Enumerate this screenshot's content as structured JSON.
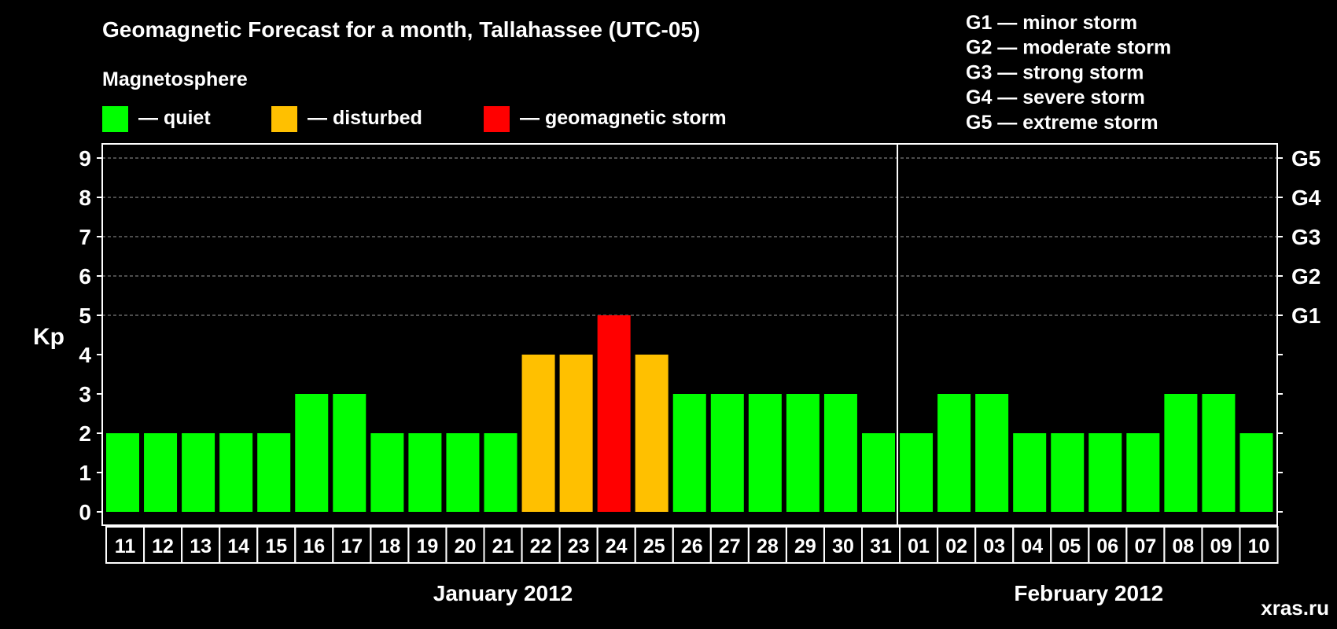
{
  "chart_data": {
    "type": "bar",
    "title": "Geomagnetic Forecast for a month, Tallahassee (UTC-05)",
    "subtitle": "Magnetosphere",
    "ylabel": "Kp",
    "ylim": [
      0,
      9
    ],
    "yticks": [
      "0",
      "1",
      "2",
      "3",
      "4",
      "5",
      "6",
      "7",
      "8",
      "9"
    ],
    "right_axis": [
      {
        "kp": 5,
        "label": "G1"
      },
      {
        "kp": 6,
        "label": "G2"
      },
      {
        "kp": 7,
        "label": "G3"
      },
      {
        "kp": 8,
        "label": "G4"
      },
      {
        "kp": 9,
        "label": "G5"
      }
    ],
    "categories": [
      "11",
      "12",
      "13",
      "14",
      "15",
      "16",
      "17",
      "18",
      "19",
      "20",
      "21",
      "22",
      "23",
      "24",
      "25",
      "26",
      "27",
      "28",
      "29",
      "30",
      "31",
      "01",
      "02",
      "03",
      "04",
      "05",
      "06",
      "07",
      "08",
      "09",
      "10"
    ],
    "values": [
      2,
      2,
      2,
      2,
      2,
      3,
      3,
      2,
      2,
      2,
      2,
      4,
      4,
      5,
      4,
      3,
      3,
      3,
      3,
      3,
      2,
      2,
      3,
      3,
      2,
      2,
      2,
      2,
      3,
      3,
      2
    ],
    "levels": [
      "quiet",
      "quiet",
      "quiet",
      "quiet",
      "quiet",
      "quiet",
      "quiet",
      "quiet",
      "quiet",
      "quiet",
      "quiet",
      "disturbed",
      "disturbed",
      "storm",
      "disturbed",
      "quiet",
      "quiet",
      "quiet",
      "quiet",
      "quiet",
      "quiet",
      "quiet",
      "quiet",
      "quiet",
      "quiet",
      "quiet",
      "quiet",
      "quiet",
      "quiet",
      "quiet",
      "quiet"
    ],
    "months": [
      {
        "label": "January 2012",
        "start": 0,
        "end": 20
      },
      {
        "label": "February 2012",
        "start": 21,
        "end": 30
      }
    ],
    "month_divider_after_index": 20,
    "legend": [
      {
        "key": "quiet",
        "label": "— quiet",
        "color": "#00ff00"
      },
      {
        "key": "disturbed",
        "label": "— disturbed",
        "color": "#ffc000"
      },
      {
        "key": "storm",
        "label": "— geomagnetic storm",
        "color": "#ff0000"
      }
    ],
    "storm_scale": [
      "G1 — minor storm",
      "G2 — moderate storm",
      "G3 — strong storm",
      "G4 — severe storm",
      "G5 — extreme storm"
    ],
    "watermark": "xras.ru",
    "grid": true
  },
  "colors": {
    "background": "#000000",
    "axis": "#ffffff",
    "grid": "#9a9a9a",
    "watermark": "#3a3a3a"
  }
}
